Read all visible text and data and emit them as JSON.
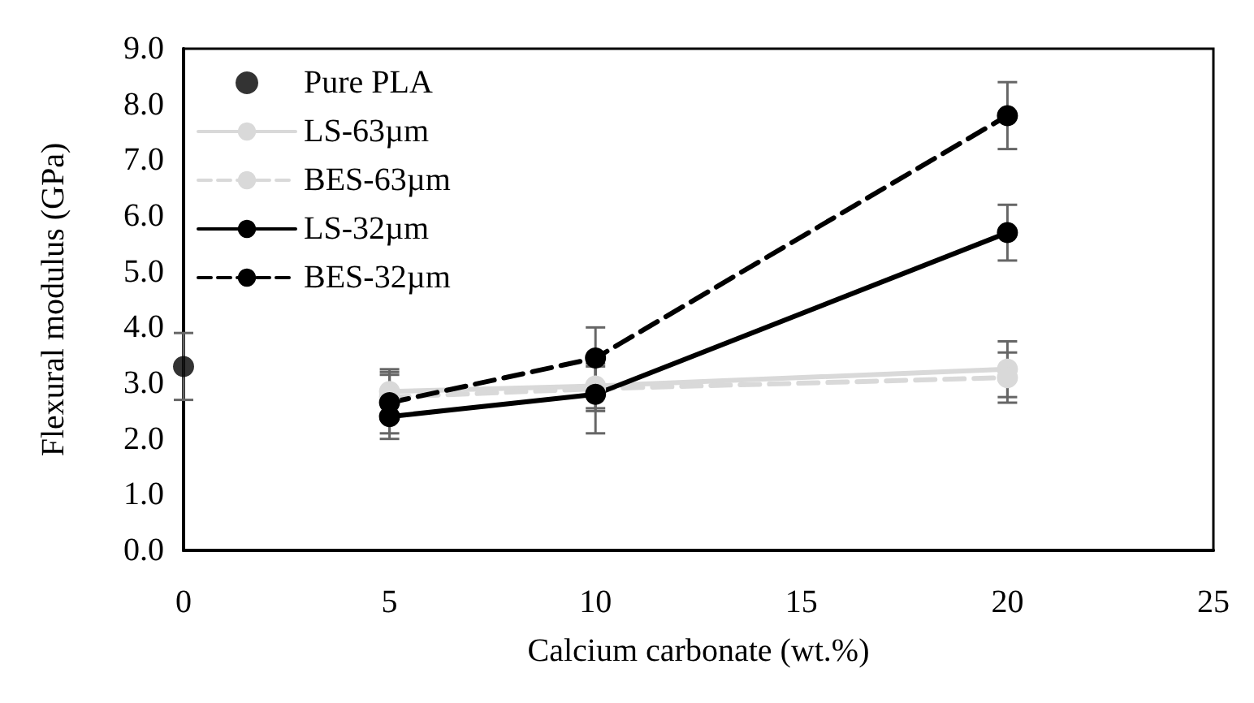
{
  "chart_data": {
    "type": "line",
    "xlabel": "Calcium carbonate (wt.%)",
    "ylabel": "Flexural modulus (GPa)",
    "xlim": [
      0,
      25
    ],
    "xticks": [
      0,
      5,
      10,
      15,
      20,
      25
    ],
    "ylim": [
      0,
      9
    ],
    "yticks": [
      {
        "value": 0,
        "label": "0.0"
      },
      {
        "value": 1,
        "label": "1.0"
      },
      {
        "value": 2,
        "label": "2.0"
      },
      {
        "value": 3,
        "label": "3.0"
      },
      {
        "value": 4,
        "label": "4.0"
      },
      {
        "value": 5,
        "label": "5.0"
      },
      {
        "value": 6,
        "label": "6.0"
      },
      {
        "value": 7,
        "label": "7.0"
      },
      {
        "value": 8,
        "label": "8.0"
      },
      {
        "value": 9,
        "label": "9.0"
      }
    ],
    "grid": false,
    "legend": "top left",
    "marker": "circle",
    "series": [
      {
        "name": "Pure PLA",
        "type": "scatter",
        "color": "#000000",
        "x": [
          0
        ],
        "values": [
          3.3
        ],
        "errors": [
          0.6
        ]
      },
      {
        "name": "LS-63µm",
        "color": "#d9d9d9",
        "line_style": "solid",
        "x": [
          5,
          10,
          20
        ],
        "values": [
          2.85,
          2.95,
          3.25
        ],
        "errors": [
          0.4,
          0.4,
          0.5
        ]
      },
      {
        "name": "BES-63µm",
        "color": "#d9d9d9",
        "line_style": "dashed",
        "x": [
          5,
          10,
          20
        ],
        "values": [
          2.75,
          2.9,
          3.1
        ],
        "errors": [
          0.4,
          0.4,
          0.45
        ]
      },
      {
        "name": "LS-32µm",
        "color": "#000000",
        "line_style": "solid",
        "x": [
          5,
          10,
          20
        ],
        "values": [
          2.4,
          2.8,
          5.7
        ],
        "errors": [
          0.4,
          0.7,
          0.5
        ]
      },
      {
        "name": "BES-32µm",
        "color": "#000000",
        "line_style": "dashed",
        "x": [
          5,
          10,
          20
        ],
        "values": [
          2.65,
          3.45,
          7.8
        ],
        "errors": [
          0.55,
          0.55,
          0.6
        ]
      }
    ]
  }
}
